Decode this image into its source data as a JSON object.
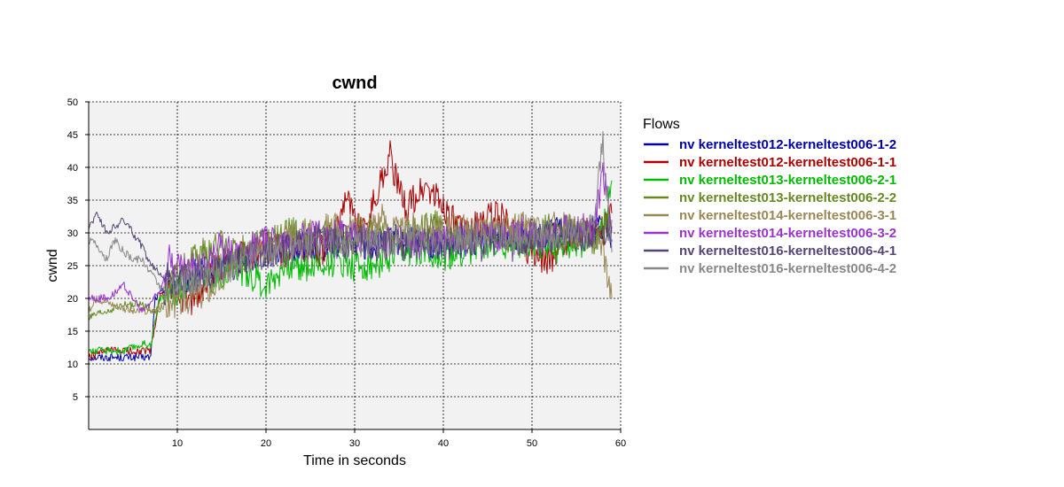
{
  "chart_data": {
    "type": "line",
    "title": "cwnd",
    "xlabel": "Time in seconds",
    "ylabel": "cwnd",
    "xlim": [
      0,
      60
    ],
    "ylim": [
      0,
      50
    ],
    "x_ticks": [
      10,
      20,
      30,
      40,
      50,
      60
    ],
    "y_ticks": [
      5,
      10,
      15,
      20,
      25,
      30,
      35,
      40,
      45,
      50
    ],
    "grid": true,
    "legend_title": "Flows",
    "legend_position": "right",
    "series": [
      {
        "name": "nv kerneltest012-kerneltest006-1-2",
        "color": "#0000aa",
        "points": [
          [
            0,
            11
          ],
          [
            2,
            11
          ],
          [
            4,
            11
          ],
          [
            6,
            11
          ],
          [
            7,
            11
          ],
          [
            7.5,
            20
          ],
          [
            9,
            22
          ],
          [
            11,
            23
          ],
          [
            13,
            24
          ],
          [
            15,
            25
          ],
          [
            17,
            26
          ],
          [
            20,
            27
          ],
          [
            23,
            28
          ],
          [
            26,
            28
          ],
          [
            29,
            29
          ],
          [
            32,
            28
          ],
          [
            35,
            29
          ],
          [
            38,
            28
          ],
          [
            41,
            28
          ],
          [
            44,
            29
          ],
          [
            47,
            30
          ],
          [
            50,
            29
          ],
          [
            53,
            30
          ],
          [
            56,
            30
          ],
          [
            58,
            31
          ],
          [
            59,
            29
          ]
        ]
      },
      {
        "name": "nv kerneltest012-kerneltest006-1-1",
        "color": "#aa0000",
        "points": [
          [
            0,
            11
          ],
          [
            2,
            12
          ],
          [
            4,
            12
          ],
          [
            6,
            12
          ],
          [
            7,
            12
          ],
          [
            8,
            20
          ],
          [
            9,
            22
          ],
          [
            10,
            20
          ],
          [
            12,
            20
          ],
          [
            14,
            24
          ],
          [
            16,
            26
          ],
          [
            18,
            27
          ],
          [
            20,
            28
          ],
          [
            22,
            27
          ],
          [
            24,
            28
          ],
          [
            26,
            27
          ],
          [
            28,
            30
          ],
          [
            29,
            37
          ],
          [
            30,
            32
          ],
          [
            31,
            30
          ],
          [
            33,
            38
          ],
          [
            34,
            42
          ],
          [
            35,
            36
          ],
          [
            36,
            34
          ],
          [
            38,
            37
          ],
          [
            40,
            34
          ],
          [
            42,
            30
          ],
          [
            44,
            31
          ],
          [
            46,
            33
          ],
          [
            48,
            30
          ],
          [
            50,
            27
          ],
          [
            52,
            26
          ],
          [
            54,
            29
          ],
          [
            56,
            30
          ],
          [
            58,
            30
          ],
          [
            59,
            33
          ]
        ]
      },
      {
        "name": "nv kerneltest013-kerneltest006-2-1",
        "color": "#00bb00",
        "points": [
          [
            0,
            12
          ],
          [
            2,
            12
          ],
          [
            4,
            12
          ],
          [
            6,
            13
          ],
          [
            7,
            13
          ],
          [
            8,
            20
          ],
          [
            10,
            21
          ],
          [
            12,
            24
          ],
          [
            14,
            23
          ],
          [
            16,
            25
          ],
          [
            18,
            24
          ],
          [
            20,
            22
          ],
          [
            22,
            25
          ],
          [
            24,
            25
          ],
          [
            26,
            25
          ],
          [
            28,
            26
          ],
          [
            30,
            25
          ],
          [
            32,
            25
          ],
          [
            34,
            26
          ],
          [
            36,
            27
          ],
          [
            38,
            28
          ],
          [
            40,
            26
          ],
          [
            42,
            27
          ],
          [
            44,
            28
          ],
          [
            46,
            29
          ],
          [
            48,
            28
          ],
          [
            50,
            29
          ],
          [
            52,
            28
          ],
          [
            54,
            27
          ],
          [
            56,
            29
          ],
          [
            58,
            30
          ],
          [
            59,
            38
          ]
        ]
      },
      {
        "name": "nv kerneltest013-kerneltest006-2-2",
        "color": "#668822",
        "points": [
          [
            0,
            17
          ],
          [
            2,
            18
          ],
          [
            4,
            19
          ],
          [
            6,
            19
          ],
          [
            8,
            18
          ],
          [
            9,
            22
          ],
          [
            11,
            25
          ],
          [
            13,
            27
          ],
          [
            15,
            28
          ],
          [
            17,
            27
          ],
          [
            19,
            28
          ],
          [
            21,
            29
          ],
          [
            23,
            30
          ],
          [
            25,
            29
          ],
          [
            27,
            30
          ],
          [
            29,
            29
          ],
          [
            31,
            30
          ],
          [
            33,
            30
          ],
          [
            35,
            29
          ],
          [
            37,
            30
          ],
          [
            39,
            31
          ],
          [
            41,
            30
          ],
          [
            43,
            29
          ],
          [
            45,
            30
          ],
          [
            47,
            29
          ],
          [
            49,
            30
          ],
          [
            51,
            30
          ],
          [
            53,
            31
          ],
          [
            55,
            30
          ],
          [
            57,
            29
          ],
          [
            59,
            32
          ]
        ]
      },
      {
        "name": "nv kerneltest014-kerneltest006-3-1",
        "color": "#998855",
        "points": [
          [
            0,
            18
          ],
          [
            1,
            20
          ],
          [
            3,
            19
          ],
          [
            5,
            18
          ],
          [
            7,
            18
          ],
          [
            9,
            19
          ],
          [
            11,
            20
          ],
          [
            13,
            21
          ],
          [
            15,
            23
          ],
          [
            17,
            26
          ],
          [
            19,
            27
          ],
          [
            21,
            28
          ],
          [
            23,
            29
          ],
          [
            25,
            30
          ],
          [
            27,
            31
          ],
          [
            29,
            30
          ],
          [
            31,
            31
          ],
          [
            33,
            32
          ],
          [
            35,
            30
          ],
          [
            37,
            31
          ],
          [
            39,
            30
          ],
          [
            41,
            31
          ],
          [
            43,
            30
          ],
          [
            45,
            31
          ],
          [
            47,
            30
          ],
          [
            49,
            31
          ],
          [
            51,
            30
          ],
          [
            53,
            31
          ],
          [
            55,
            30
          ],
          [
            57,
            30
          ],
          [
            58,
            28
          ],
          [
            59,
            20
          ]
        ]
      },
      {
        "name": "nv kerneltest014-kerneltest006-3-2",
        "color": "#9933cc",
        "points": [
          [
            0,
            20
          ],
          [
            2,
            20
          ],
          [
            4,
            22
          ],
          [
            6,
            18
          ],
          [
            8,
            21
          ],
          [
            9,
            26
          ],
          [
            11,
            24
          ],
          [
            13,
            25
          ],
          [
            15,
            28
          ],
          [
            17,
            27
          ],
          [
            19,
            28
          ],
          [
            21,
            29
          ],
          [
            23,
            28
          ],
          [
            25,
            30
          ],
          [
            27,
            29
          ],
          [
            29,
            30
          ],
          [
            31,
            29
          ],
          [
            33,
            28
          ],
          [
            35,
            29
          ],
          [
            37,
            28
          ],
          [
            39,
            29
          ],
          [
            41,
            30
          ],
          [
            43,
            29
          ],
          [
            45,
            30
          ],
          [
            47,
            29
          ],
          [
            49,
            30
          ],
          [
            51,
            29
          ],
          [
            53,
            30
          ],
          [
            55,
            31
          ],
          [
            57,
            30
          ],
          [
            58,
            40
          ],
          [
            59,
            30
          ]
        ]
      },
      {
        "name": "nv kerneltest016-kerneltest006-4-1",
        "color": "#554477",
        "points": [
          [
            0,
            31
          ],
          [
            1,
            33
          ],
          [
            2,
            30
          ],
          [
            3,
            31
          ],
          [
            4,
            32
          ],
          [
            5,
            30
          ],
          [
            6,
            28
          ],
          [
            7,
            25
          ],
          [
            8,
            24
          ],
          [
            9,
            23
          ],
          [
            10,
            22
          ],
          [
            12,
            23
          ],
          [
            14,
            24
          ],
          [
            16,
            25
          ],
          [
            18,
            26
          ],
          [
            20,
            27
          ],
          [
            22,
            28
          ],
          [
            24,
            28
          ],
          [
            26,
            29
          ],
          [
            28,
            28
          ],
          [
            30,
            29
          ],
          [
            32,
            28
          ],
          [
            34,
            29
          ],
          [
            36,
            28
          ],
          [
            38,
            29
          ],
          [
            40,
            28
          ],
          [
            42,
            29
          ],
          [
            44,
            28
          ],
          [
            46,
            29
          ],
          [
            48,
            28
          ],
          [
            50,
            29
          ],
          [
            52,
            29
          ],
          [
            54,
            30
          ],
          [
            56,
            29
          ],
          [
            58,
            30
          ],
          [
            59,
            31
          ]
        ]
      },
      {
        "name": "nv kerneltest016-kerneltest006-4-2",
        "color": "#888888",
        "points": [
          [
            0,
            29
          ],
          [
            1,
            28
          ],
          [
            2,
            26
          ],
          [
            3,
            29
          ],
          [
            4,
            27
          ],
          [
            5,
            26
          ],
          [
            6,
            26
          ],
          [
            7,
            24
          ],
          [
            8,
            22
          ],
          [
            9,
            21
          ],
          [
            10,
            22
          ],
          [
            12,
            23
          ],
          [
            14,
            24
          ],
          [
            16,
            25
          ],
          [
            18,
            26
          ],
          [
            20,
            27
          ],
          [
            22,
            27
          ],
          [
            24,
            28
          ],
          [
            26,
            28
          ],
          [
            28,
            29
          ],
          [
            30,
            28
          ],
          [
            32,
            29
          ],
          [
            34,
            28
          ],
          [
            36,
            29
          ],
          [
            38,
            29
          ],
          [
            40,
            28
          ],
          [
            42,
            29
          ],
          [
            44,
            29
          ],
          [
            46,
            30
          ],
          [
            48,
            29
          ],
          [
            50,
            30
          ],
          [
            52,
            29
          ],
          [
            54,
            30
          ],
          [
            56,
            30
          ],
          [
            57,
            31
          ],
          [
            58,
            44
          ],
          [
            59,
            27
          ]
        ]
      }
    ]
  }
}
